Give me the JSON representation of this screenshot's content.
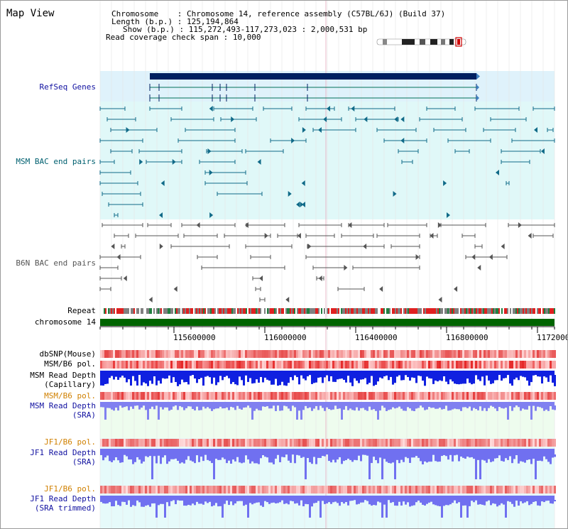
{
  "window": {
    "title": "Map View"
  },
  "info": {
    "chromosome_label": "Chromosome    :",
    "chromosome_value": "Chromosome 14, reference assembly (C57BL/6J) (Build 37)",
    "length_label": "Length (b.p.) :",
    "length_value": "125,194,864",
    "show_label": "Show (b.p.) :",
    "show_value": "115,272,493-117,273,023 : 2,000,531 bp",
    "coverage_label": "Read coverage check span :",
    "coverage_value": "10,000"
  },
  "tracks": {
    "refseq": "RefSeq Genes",
    "msm_bac": "MSM BAC end pairs",
    "b6n_bac": "B6N BAC end pairs",
    "repeat": "Repeat",
    "chromosome": "chromosome 14",
    "dbsnp": "dbSNP(Mouse)",
    "msm_b6_pol_1": "MSM/B6 pol.",
    "msm_read_depth_cap_1": "MSM Read Depth",
    "msm_read_depth_cap_2": "(Capillary)",
    "msm_b6_pol_2": "MSM/B6 pol.",
    "msm_read_depth_sra_1": "MSM Read Depth",
    "msm_read_depth_sra_2": "(SRA)",
    "jf1_b6_pol_1": "JF1/B6 pol.",
    "jf1_read_depth_sra_1": "JF1 Read Depth",
    "jf1_read_depth_sra_2": "(SRA)",
    "jf1_b6_pol_2": "JF1/B6 pol.",
    "jf1_read_depth_trim_1": "JF1 Read Depth",
    "jf1_read_depth_trim_2": "(SRA trimmed)"
  },
  "axis": {
    "ticks": [
      "115600000",
      "116000000",
      "116400000",
      "116800000",
      "1172000"
    ]
  },
  "colors": {
    "refseq_bg": "#dff2fb",
    "msm_bg": "#e0f8f8",
    "b6n_bg": "#ffffff",
    "gene_dark": "#002060",
    "gene_line": "#00705a",
    "msm_feature": "#106a88",
    "b6n_feature": "#555555",
    "chromosome_bar": "#006400",
    "pol_red": "#e83030",
    "depth_blue": "#1020e0",
    "depth_light": "#7070f0"
  }
}
